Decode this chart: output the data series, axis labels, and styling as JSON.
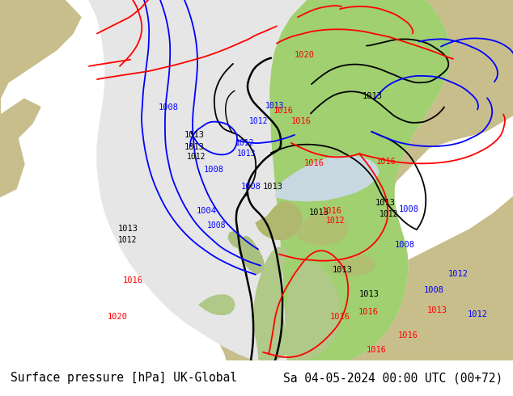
{
  "title_left": "Surface pressure [hPa] UK-Global",
  "title_right": "Sa 04-05-2024 00:00 UTC (00+72)",
  "fig_width": 6.34,
  "fig_height": 4.9,
  "dpi": 100,
  "bg_ocean": "#c0c0c0",
  "bg_land_outside": "#c8be8c",
  "domain_fill": "#e8e8e8",
  "green_fill": "#a8d878",
  "land_fill": "#b8b878",
  "sea_fill": "#c8c8c8",
  "title_fontsize": 10.5
}
